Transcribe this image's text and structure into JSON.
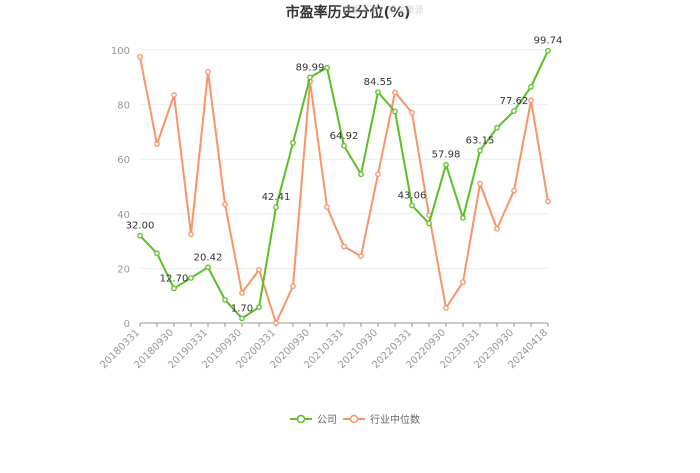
{
  "chart_data": {
    "type": "line",
    "title": "市盈率历史分位(%)",
    "watermark": "数据来源：恒生聚源",
    "xlabel": "",
    "ylabel": "",
    "ylim": [
      0,
      100
    ],
    "yticks": [
      0,
      20,
      40,
      60,
      80,
      100
    ],
    "grid": true,
    "legend_position": "bottom",
    "x": [
      "20180331",
      "20180630",
      "20180930",
      "20181231",
      "20190331",
      "20190630",
      "20190930",
      "20191231",
      "20200331",
      "20200630",
      "20200930",
      "20201231",
      "20210331",
      "20210630",
      "20210930",
      "20211231",
      "20220331",
      "20220630",
      "20220930",
      "20221231",
      "20230331",
      "20230630",
      "20230930",
      "20231231",
      "20240418"
    ],
    "xtick_labels": [
      "20180331",
      "20180930",
      "20190331",
      "20190930",
      "20200331",
      "20200930",
      "20210331",
      "20210930",
      "20220331",
      "20220930",
      "20230331",
      "20230930",
      "20240418"
    ],
    "series": [
      {
        "name": "公司",
        "color": "#5ac024",
        "values": [
          32.0,
          25.5,
          12.7,
          16.5,
          20.42,
          8.5,
          1.7,
          5.8,
          42.41,
          66.0,
          89.99,
          93.5,
          64.92,
          54.5,
          84.55,
          77.5,
          43.06,
          36.5,
          57.98,
          38.5,
          63.15,
          71.5,
          77.62,
          86.5,
          99.74
        ],
        "labels": {
          "0": "32.00",
          "2": "12.70",
          "4": "20.42",
          "6": "1.70",
          "8": "42.41",
          "10": "89.99",
          "12": "64.92",
          "14": "84.55",
          "16": "43.06",
          "18": "57.98",
          "20": "63.15",
          "22": "77.62",
          "24": "99.74"
        }
      },
      {
        "name": "行业中位数",
        "color": "#f89468",
        "values": [
          97.5,
          65.5,
          83.5,
          32.5,
          92.0,
          43.5,
          11.0,
          19.5,
          0.0,
          13.5,
          88.5,
          42.5,
          28.0,
          24.5,
          54.5,
          84.5,
          77.0,
          39.5,
          5.5,
          15.0,
          51.0,
          34.5,
          48.5,
          81.5,
          44.5
        ]
      }
    ]
  }
}
